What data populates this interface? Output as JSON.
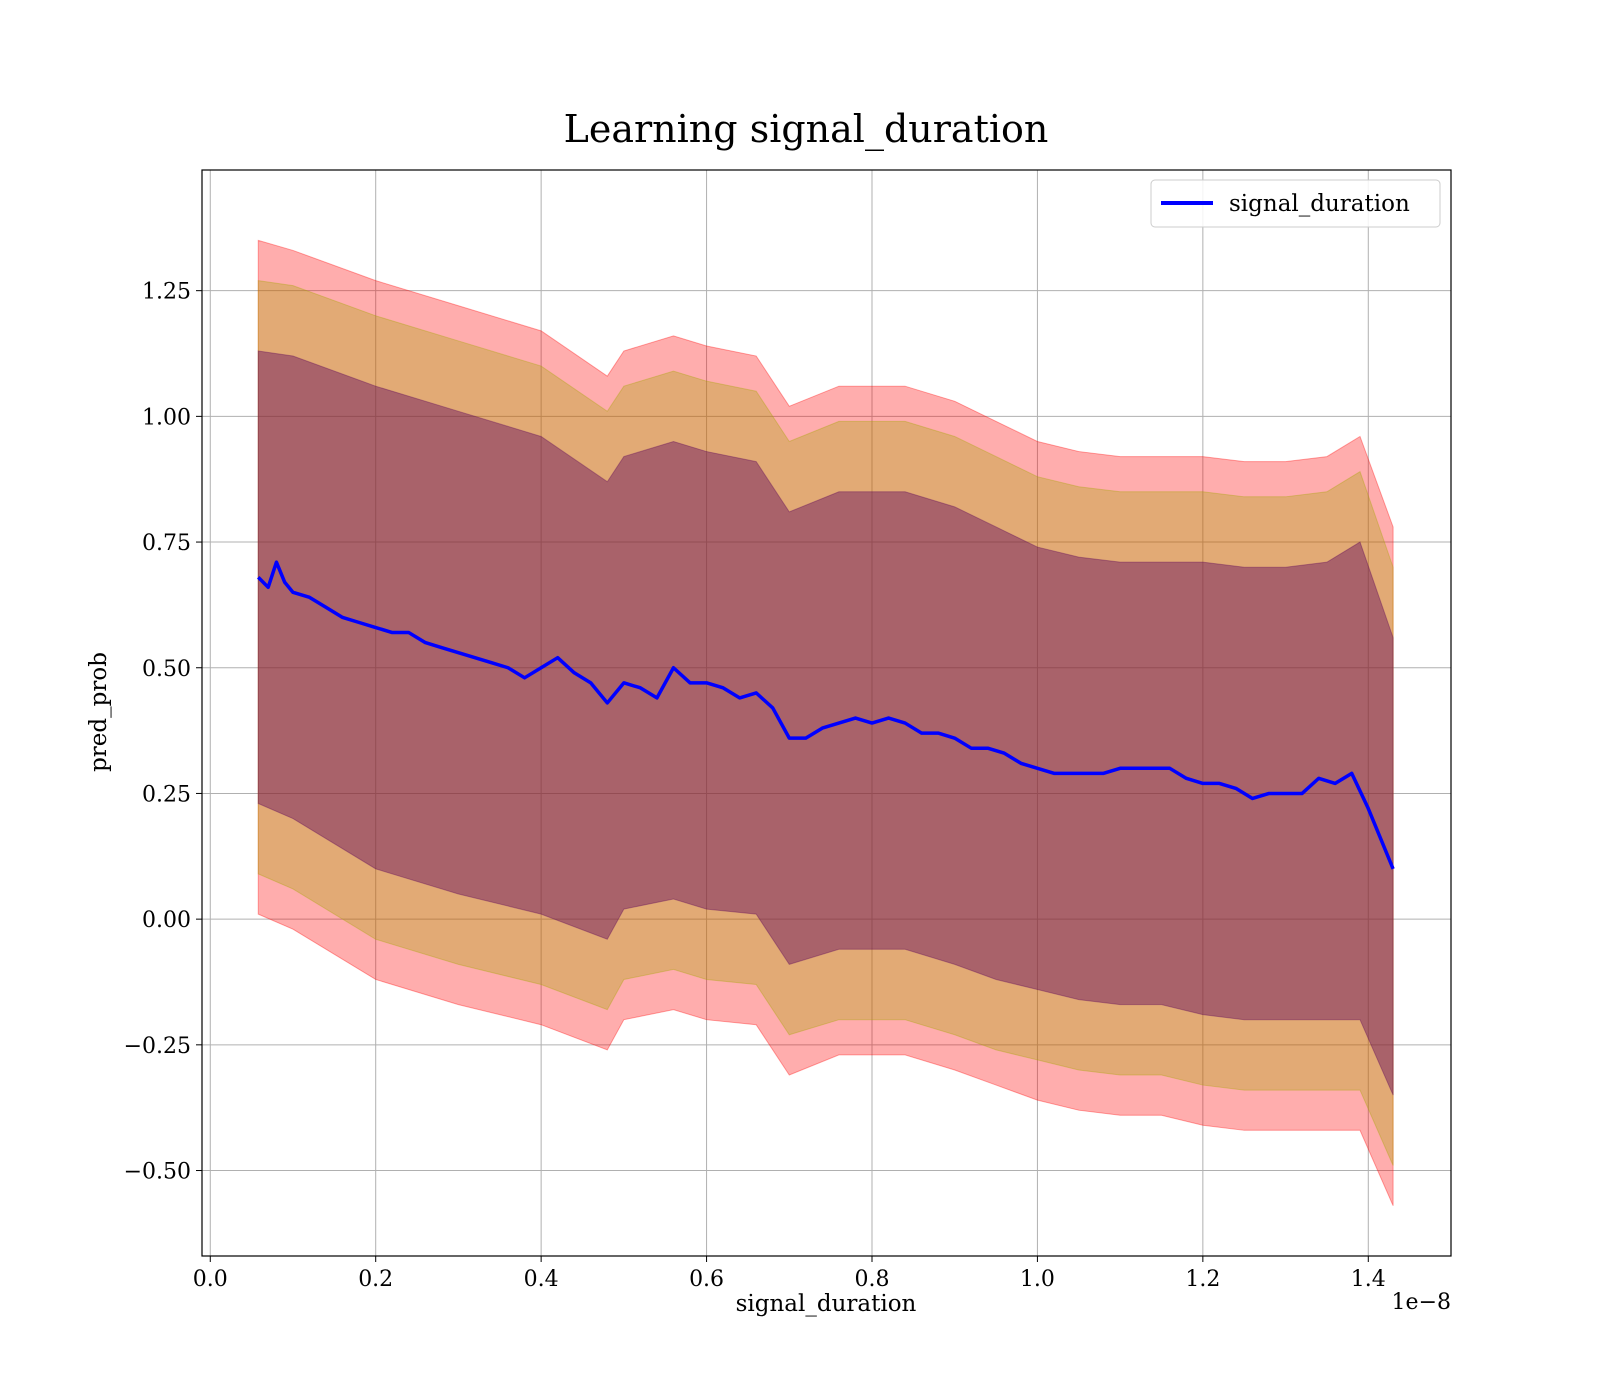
{
  "chart_data": {
    "type": "line",
    "title": "Learning signal_duration",
    "xlabel": "signal_duration",
    "ylabel": "pred_prob",
    "x_offset_text": "1e−8",
    "xlim": [
      -0.01,
      1.5
    ],
    "ylim": [
      -0.67,
      1.49
    ],
    "x_ticks": [
      0.0,
      0.2,
      0.4,
      0.6,
      0.8,
      1.0,
      1.2,
      1.4
    ],
    "x_tick_labels": [
      "0.0",
      "0.2",
      "0.4",
      "0.6",
      "0.8",
      "1.0",
      "1.2",
      "1.4"
    ],
    "y_ticks": [
      -0.5,
      -0.25,
      0.0,
      0.25,
      0.5,
      0.75,
      1.0,
      1.25
    ],
    "y_tick_labels": [
      "−0.50",
      "−0.25",
      "0.00",
      "0.25",
      "0.50",
      "0.75",
      "1.00",
      "1.25"
    ],
    "grid": true,
    "legend": {
      "position": "top-right",
      "entries": [
        "signal_duration"
      ]
    },
    "colors": {
      "line": "#0000ff",
      "band_outer": "#ff0000",
      "band_middle": "#a5a500",
      "band_inner": "#5a005a"
    },
    "series": [
      {
        "name": "signal_duration",
        "x": [
          0.058,
          0.07,
          0.08,
          0.09,
          0.1,
          0.12,
          0.14,
          0.16,
          0.18,
          0.2,
          0.22,
          0.24,
          0.26,
          0.28,
          0.3,
          0.32,
          0.34,
          0.36,
          0.38,
          0.4,
          0.42,
          0.44,
          0.46,
          0.48,
          0.5,
          0.52,
          0.54,
          0.56,
          0.58,
          0.6,
          0.62,
          0.64,
          0.66,
          0.68,
          0.7,
          0.72,
          0.74,
          0.76,
          0.78,
          0.8,
          0.82,
          0.84,
          0.86,
          0.88,
          0.9,
          0.92,
          0.94,
          0.96,
          0.98,
          1.0,
          1.02,
          1.04,
          1.06,
          1.08,
          1.1,
          1.12,
          1.14,
          1.16,
          1.18,
          1.2,
          1.22,
          1.24,
          1.26,
          1.28,
          1.3,
          1.32,
          1.34,
          1.36,
          1.38,
          1.4,
          1.43
        ],
        "y": [
          0.68,
          0.66,
          0.71,
          0.67,
          0.65,
          0.64,
          0.62,
          0.6,
          0.59,
          0.58,
          0.57,
          0.57,
          0.55,
          0.54,
          0.53,
          0.52,
          0.51,
          0.5,
          0.48,
          0.5,
          0.52,
          0.49,
          0.47,
          0.43,
          0.47,
          0.46,
          0.44,
          0.5,
          0.47,
          0.47,
          0.46,
          0.44,
          0.45,
          0.42,
          0.36,
          0.36,
          0.38,
          0.39,
          0.4,
          0.39,
          0.4,
          0.39,
          0.37,
          0.37,
          0.36,
          0.34,
          0.34,
          0.33,
          0.31,
          0.3,
          0.29,
          0.29,
          0.29,
          0.29,
          0.3,
          0.3,
          0.3,
          0.3,
          0.28,
          0.27,
          0.27,
          0.26,
          0.24,
          0.25,
          0.25,
          0.25,
          0.28,
          0.27,
          0.29,
          0.22,
          0.1
        ]
      }
    ],
    "bands": [
      {
        "name": "outer",
        "x": [
          0.058,
          0.1,
          0.2,
          0.3,
          0.4,
          0.48,
          0.5,
          0.56,
          0.6,
          0.66,
          0.7,
          0.76,
          0.8,
          0.84,
          0.9,
          0.95,
          1.0,
          1.05,
          1.1,
          1.15,
          1.2,
          1.25,
          1.3,
          1.35,
          1.39,
          1.43
        ],
        "upper": [
          1.35,
          1.33,
          1.27,
          1.22,
          1.17,
          1.08,
          1.13,
          1.16,
          1.14,
          1.12,
          1.02,
          1.06,
          1.06,
          1.06,
          1.03,
          0.99,
          0.95,
          0.93,
          0.92,
          0.92,
          0.92,
          0.91,
          0.91,
          0.92,
          0.96,
          0.78
        ],
        "lower": [
          0.01,
          -0.02,
          -0.12,
          -0.17,
          -0.21,
          -0.26,
          -0.2,
          -0.18,
          -0.2,
          -0.21,
          -0.31,
          -0.27,
          -0.27,
          -0.27,
          -0.3,
          -0.33,
          -0.36,
          -0.38,
          -0.39,
          -0.39,
          -0.41,
          -0.42,
          -0.42,
          -0.42,
          -0.42,
          -0.57
        ]
      },
      {
        "name": "middle",
        "x": [
          0.058,
          0.1,
          0.2,
          0.3,
          0.4,
          0.48,
          0.5,
          0.56,
          0.6,
          0.66,
          0.7,
          0.76,
          0.8,
          0.84,
          0.9,
          0.95,
          1.0,
          1.05,
          1.1,
          1.15,
          1.2,
          1.25,
          1.3,
          1.35,
          1.39,
          1.43
        ],
        "upper": [
          1.27,
          1.26,
          1.2,
          1.15,
          1.1,
          1.01,
          1.06,
          1.09,
          1.07,
          1.05,
          0.95,
          0.99,
          0.99,
          0.99,
          0.96,
          0.92,
          0.88,
          0.86,
          0.85,
          0.85,
          0.85,
          0.84,
          0.84,
          0.85,
          0.89,
          0.7
        ],
        "lower": [
          0.09,
          0.06,
          -0.04,
          -0.09,
          -0.13,
          -0.18,
          -0.12,
          -0.1,
          -0.12,
          -0.13,
          -0.23,
          -0.2,
          -0.2,
          -0.2,
          -0.23,
          -0.26,
          -0.28,
          -0.3,
          -0.31,
          -0.31,
          -0.33,
          -0.34,
          -0.34,
          -0.34,
          -0.34,
          -0.49
        ]
      },
      {
        "name": "inner",
        "x": [
          0.058,
          0.1,
          0.2,
          0.3,
          0.4,
          0.48,
          0.5,
          0.56,
          0.6,
          0.66,
          0.7,
          0.76,
          0.8,
          0.84,
          0.9,
          0.95,
          1.0,
          1.05,
          1.1,
          1.15,
          1.2,
          1.25,
          1.3,
          1.35,
          1.39,
          1.43
        ],
        "upper": [
          1.13,
          1.12,
          1.06,
          1.01,
          0.96,
          0.87,
          0.92,
          0.95,
          0.93,
          0.91,
          0.81,
          0.85,
          0.85,
          0.85,
          0.82,
          0.78,
          0.74,
          0.72,
          0.71,
          0.71,
          0.71,
          0.7,
          0.7,
          0.71,
          0.75,
          0.56
        ],
        "lower": [
          0.23,
          0.2,
          0.1,
          0.05,
          0.01,
          -0.04,
          0.02,
          0.04,
          0.02,
          0.01,
          -0.09,
          -0.06,
          -0.06,
          -0.06,
          -0.09,
          -0.12,
          -0.14,
          -0.16,
          -0.17,
          -0.17,
          -0.19,
          -0.2,
          -0.2,
          -0.2,
          -0.2,
          -0.35
        ]
      }
    ]
  }
}
